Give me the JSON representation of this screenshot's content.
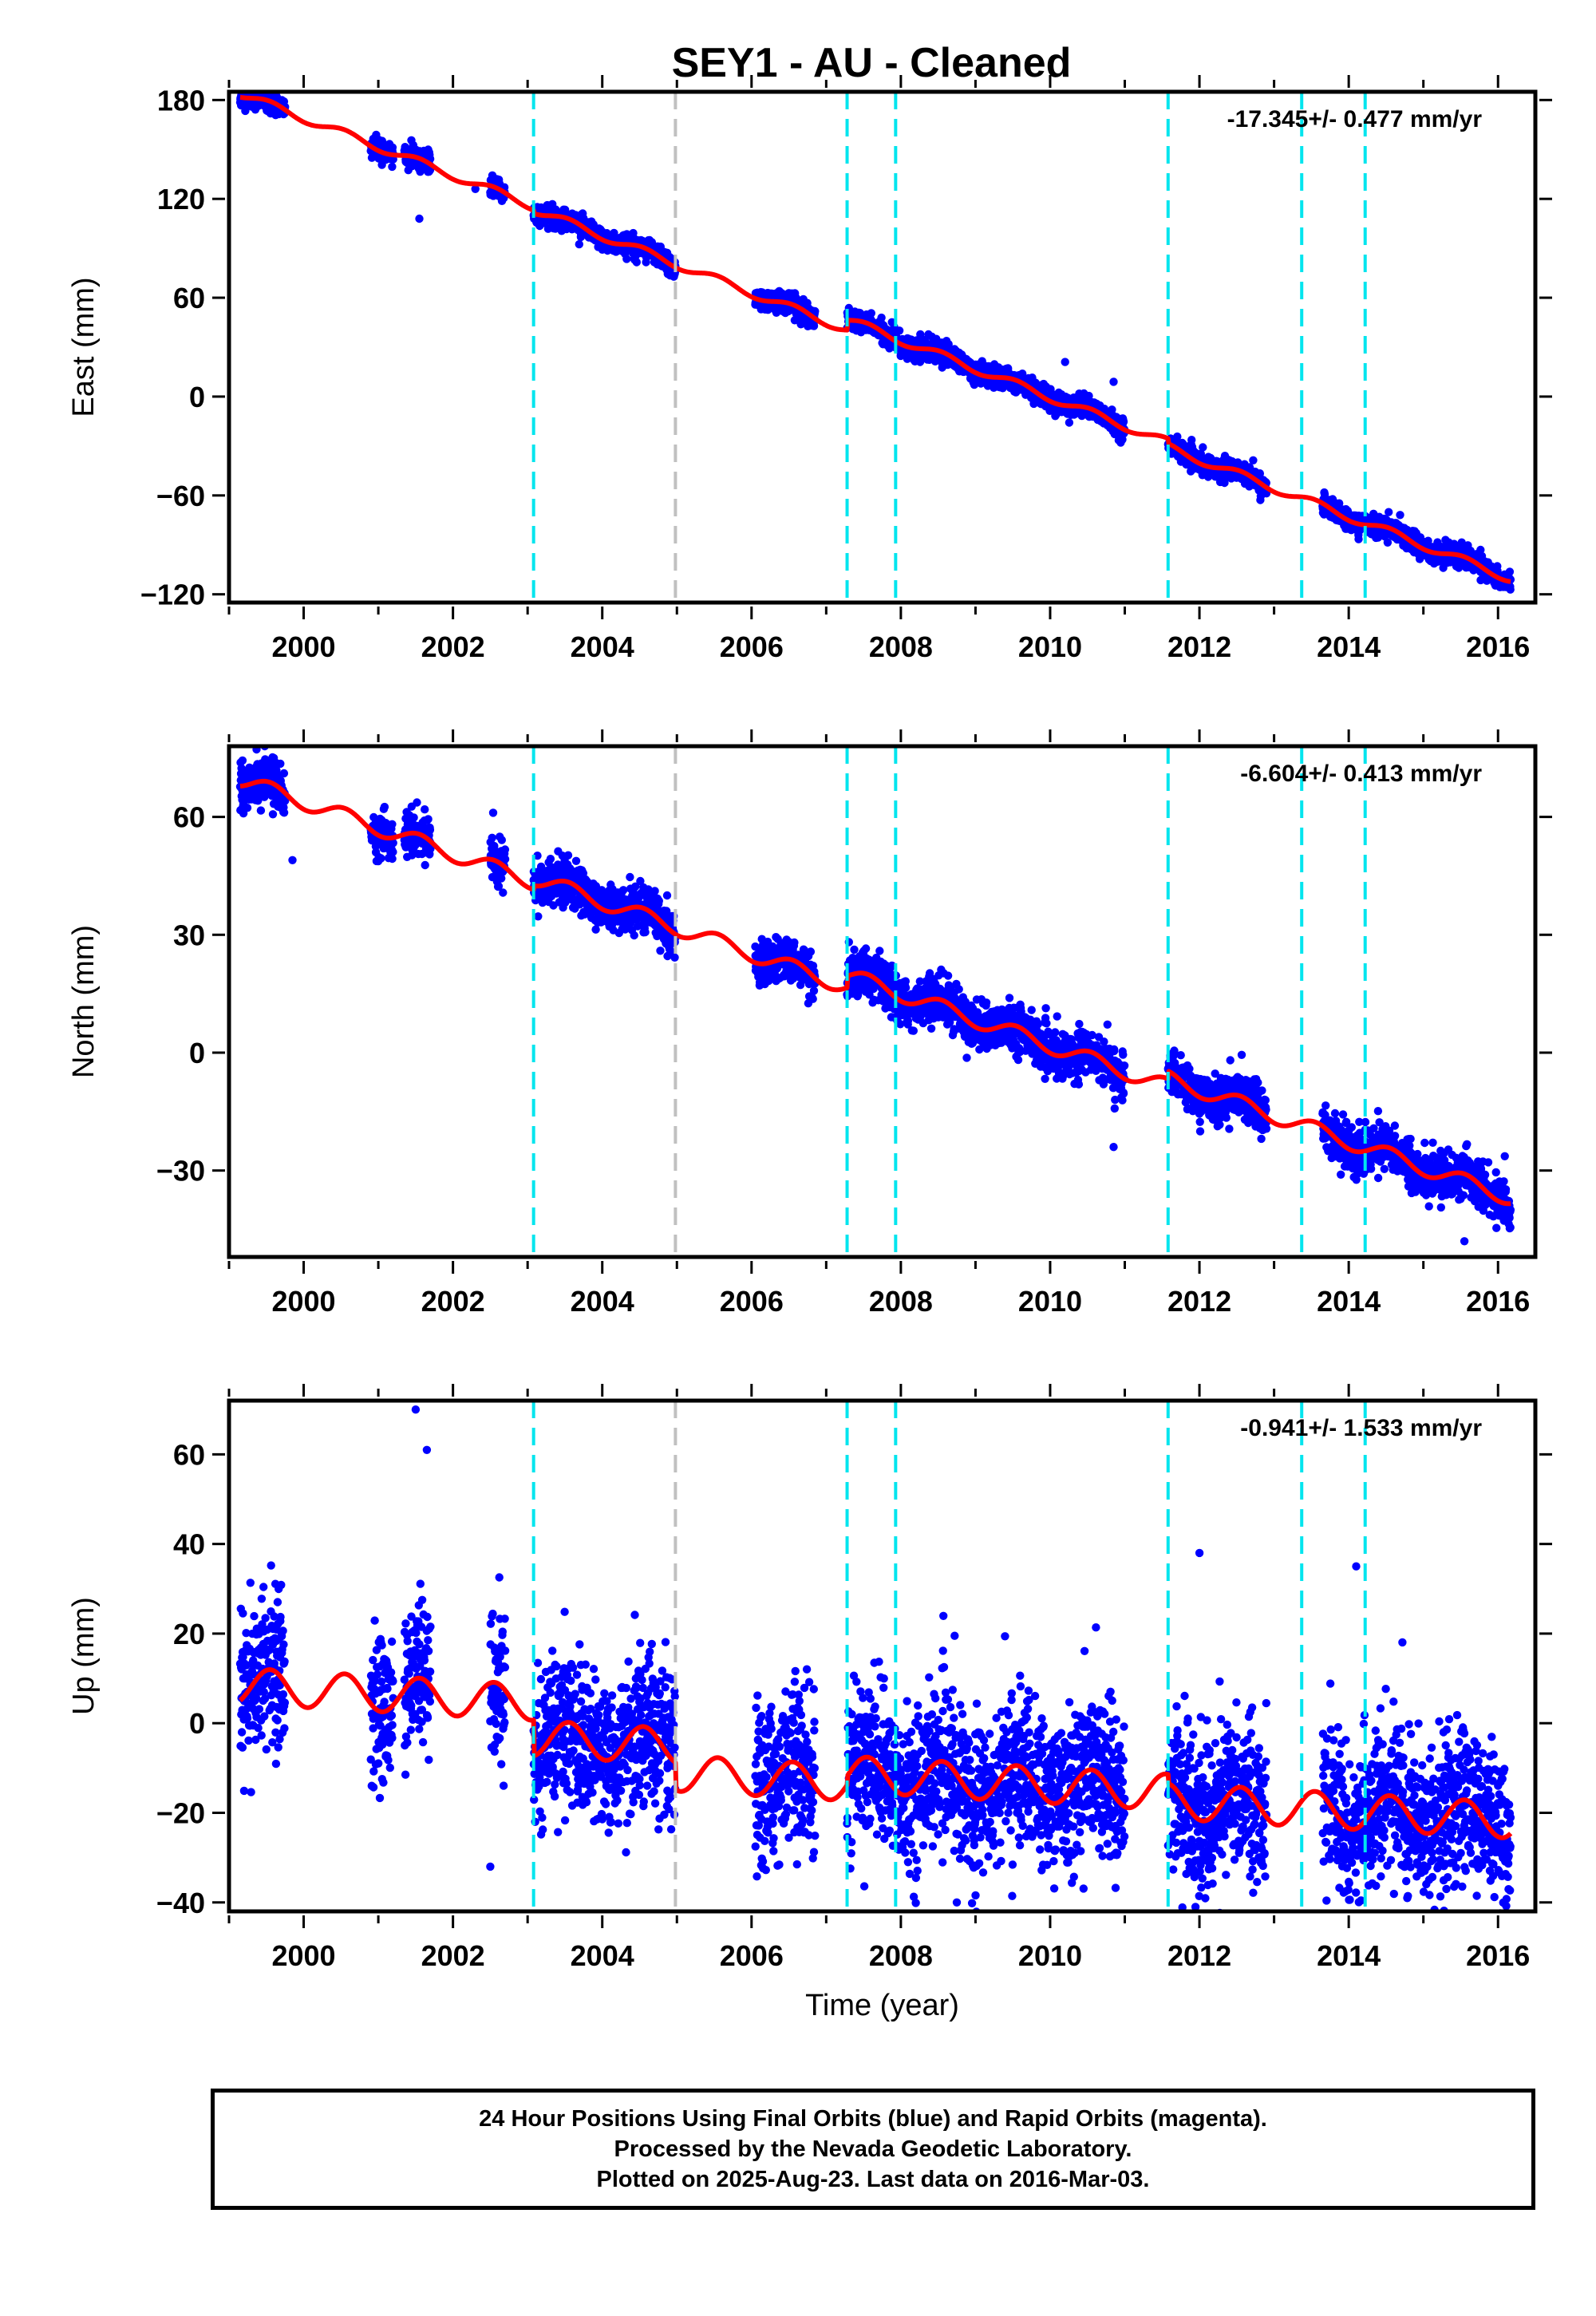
{
  "title": "SEY1  - AU - Cleaned",
  "footer": {
    "lines": [
      "24 Hour Positions Using Final Orbits (blue) and Rapid Orbits (magenta).",
      "Processed by the Nevada Geodetic Laboratory.",
      "Plotted on 2025-Aug-23. Last data on 2016-Mar-03."
    ]
  },
  "colors": {
    "data_points": "#0000ff",
    "model_fit": "#ff0000",
    "equipment_change": "#00e5ee",
    "other_event": "#c0c0c0",
    "frame": "#000000"
  },
  "events": {
    "cyan_dashed": [
      2003.08,
      2007.28,
      2007.93,
      2011.58,
      2013.37,
      2014.22
    ],
    "gray_dashed": [
      2004.98
    ]
  },
  "chart_data": [
    {
      "type": "scatter",
      "panel": "east",
      "ylabel": "East (mm)",
      "xlabel": "",
      "rate_label": "-17.345+/- 0.477 mm/yr",
      "xlim": [
        1999,
        2016.5
      ],
      "ylim": [
        -125,
        185
      ],
      "xticks": [
        2000,
        2002,
        2004,
        2006,
        2008,
        2010,
        2012,
        2014,
        2016
      ],
      "yticks": [
        -120,
        -60,
        0,
        60,
        120,
        180
      ],
      "ytick_labels": [
        "−120",
        "−60",
        "0",
        "60",
        "120",
        "180"
      ],
      "segments": [
        [
          1999.15,
          1999.75
        ],
        [
          2000.9,
          2001.2
        ],
        [
          2001.35,
          2001.7
        ],
        [
          2002.5,
          2002.7
        ],
        [
          2003.08,
          2004.98
        ],
        [
          2006.05,
          2006.85
        ],
        [
          2007.28,
          2011.0
        ],
        [
          2011.58,
          2012.9
        ],
        [
          2013.65,
          2016.17
        ]
      ],
      "series": [
        {
          "name": "Final Orbits (blue)",
          "style": "points",
          "intercept_2008": 30.2,
          "rate": -17.345,
          "noise": 3.0,
          "outliers": [
            [
              2010.2,
              21
            ],
            [
              2010.85,
              9
            ],
            [
              2001.55,
              108
            ],
            [
              2002.3,
              126
            ]
          ]
        },
        {
          "name": "model",
          "style": "line",
          "intercept_2008": 30.2,
          "rate": -17.345,
          "annual_amp": 2.5,
          "offsets": [
            [
              2003.08,
              -2
            ],
            [
              2007.28,
              6
            ],
            [
              2011.58,
              -3
            ]
          ]
        }
      ]
    },
    {
      "type": "scatter",
      "panel": "north",
      "ylabel": "North (mm)",
      "xlabel": "",
      "rate_label": "-6.604+/- 0.413 mm/yr",
      "xlim": [
        1999,
        2016.5
      ],
      "ylim": [
        -52,
        78
      ],
      "xticks": [
        2000,
        2002,
        2004,
        2006,
        2008,
        2010,
        2012,
        2014,
        2016
      ],
      "yticks": [
        -30,
        0,
        30,
        60
      ],
      "ytick_labels": [
        "−30",
        "0",
        "30",
        "60"
      ],
      "segments": [
        [
          1999.15,
          1999.75
        ],
        [
          2000.9,
          2001.2
        ],
        [
          2001.35,
          2001.7
        ],
        [
          2002.5,
          2002.7
        ],
        [
          2003.08,
          2004.98
        ],
        [
          2006.05,
          2006.85
        ],
        [
          2007.28,
          2011.0
        ],
        [
          2011.58,
          2012.9
        ],
        [
          2013.65,
          2016.17
        ]
      ],
      "series": [
        {
          "name": "Final Orbits (blue)",
          "style": "points",
          "intercept_2008": 11.0,
          "rate": -6.604,
          "noise": 2.8,
          "outliers": [
            [
              1999.6,
              75
            ],
            [
              1999.85,
              49
            ],
            [
              2010.85,
              -24
            ],
            [
              2015.55,
              -48
            ]
          ]
        },
        {
          "name": "model",
          "style": "line",
          "intercept_2008": 11.0,
          "rate": -6.604,
          "annual_amp": 2.0,
          "offsets": [
            [
              2003.08,
              1
            ],
            [
              2007.28,
              3
            ],
            [
              2011.58,
              2
            ]
          ]
        }
      ]
    },
    {
      "type": "scatter",
      "panel": "up",
      "ylabel": "Up (mm)",
      "xlabel": "Time (year)",
      "rate_label": "-0.941+/- 1.533 mm/yr",
      "xlim": [
        1999,
        2016.5
      ],
      "ylim": [
        -42,
        72
      ],
      "xticks": [
        2000,
        2002,
        2004,
        2006,
        2008,
        2010,
        2012,
        2014,
        2016
      ],
      "yticks": [
        -40,
        -20,
        0,
        20,
        40,
        60
      ],
      "ytick_labels": [
        "−40",
        "−20",
        "0",
        "20",
        "40",
        "60"
      ],
      "segments": [
        [
          1999.15,
          1999.75
        ],
        [
          2000.9,
          2001.2
        ],
        [
          2001.35,
          2001.7
        ],
        [
          2002.5,
          2002.7
        ],
        [
          2003.08,
          2004.98
        ],
        [
          2006.05,
          2006.85
        ],
        [
          2007.28,
          2011.0
        ],
        [
          2011.58,
          2012.9
        ],
        [
          2013.65,
          2016.17
        ]
      ],
      "series": [
        {
          "name": "Final Orbits (blue)",
          "style": "points",
          "intercept_2008": 0,
          "rate": -0.941,
          "noise": 8.5,
          "outliers": [
            [
              2001.5,
              70
            ],
            [
              2001.65,
              61
            ],
            [
              2002.5,
              -32
            ],
            [
              2008.75,
              -40
            ],
            [
              2014.1,
              35
            ],
            [
              2012.0,
              38
            ]
          ]
        },
        {
          "name": "model",
          "style": "line",
          "intercept_2008": 0,
          "rate": -0.941,
          "annual_amp": 4.0,
          "offsets": [
            [
              2003.08,
              -8
            ],
            [
              2004.98,
              -6
            ],
            [
              2007.28,
              2
            ],
            [
              2011.58,
              -2
            ]
          ]
        }
      ]
    }
  ]
}
